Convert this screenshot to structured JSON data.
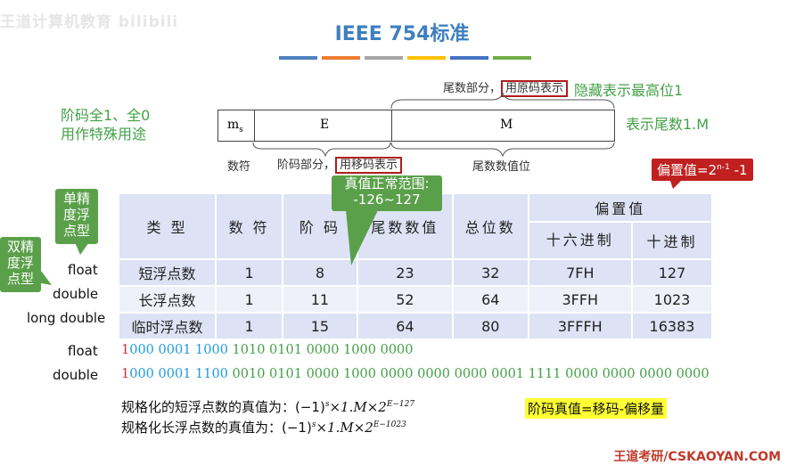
{
  "watermark": "王道计算机教育 bilibili",
  "title": "IEEE 754标准",
  "color_bars": [
    "#4f81bd",
    "#ed7d31",
    "#a5a5a5",
    "#ffc000",
    "#4472c4",
    "#70ad47"
  ],
  "top": {
    "mantissa_note": "尾数部分，",
    "mantissa_box": "用原码表示",
    "hidden_note": "隐藏表示最高位1",
    "tail_note": "表示尾数1.M",
    "special_note_line1": "阶码全1、全0",
    "special_note_line2": "用作特殊用途"
  },
  "format": {
    "sign": "m",
    "sign_sub": "s",
    "exp": "E",
    "mant": "M",
    "sign_label": "数符",
    "exp_label": "阶码部分，",
    "exp_box": "用移码表示",
    "mant_label": "尾数数值位"
  },
  "bias_box": {
    "text": "偏置值=2",
    "sup": "n-1",
    "tail": " -1"
  },
  "range_callout": {
    "line1": "真值正常范围:",
    "line2": "-126~127"
  },
  "single_callout": {
    "l1": "单精",
    "l2": "度浮",
    "l3": "点型"
  },
  "double_callout": {
    "l1": "双精",
    "l2": "度浮",
    "l3": "点型"
  },
  "table": {
    "headers": {
      "type": "类 型",
      "sign": "数 符",
      "exp": "阶 码",
      "mant": "尾数数值",
      "total": "总位数",
      "bias": "偏置值",
      "hex": "十六进制",
      "dec": "十进制"
    },
    "rows": [
      {
        "label": "float",
        "type": "短浮点数",
        "sign": "1",
        "exp": "8",
        "mant": "23",
        "total": "32",
        "hex": "7FH",
        "dec": "127"
      },
      {
        "label": "double",
        "type": "长浮点数",
        "sign": "1",
        "exp": "11",
        "mant": "52",
        "total": "64",
        "hex": "3FFH",
        "dec": "1023"
      },
      {
        "label": "long double",
        "type": "临时浮点数",
        "sign": "1",
        "exp": "15",
        "mant": "64",
        "total": "80",
        "hex": "3FFFH",
        "dec": "16383"
      }
    ]
  },
  "examples": [
    {
      "label": "float",
      "sign": "1",
      "exp": "000 0001 1000",
      "mant": " 1010 0101 0000 1000 0000"
    },
    {
      "label": "double",
      "sign": "1",
      "exp": "000 0001 1100",
      "mant": " 0010 0101 0000 1000 0000 0000 0000 0001 1111 0000 0000 0000 0000"
    }
  ],
  "formulas": [
    {
      "text": "规格化的短浮点数的真值为：(−1)",
      "s": "s",
      "mid": "×1.M×2",
      "exp": "E−127"
    },
    {
      "text": "规格化长浮点数的真值为：(−1)",
      "s": "s",
      "mid": "×1.M×2",
      "exp": "E−1023"
    }
  ],
  "highlight": "阶码真值=移码-偏移量",
  "footer": "王道考研/CSKAOYAN.COM"
}
